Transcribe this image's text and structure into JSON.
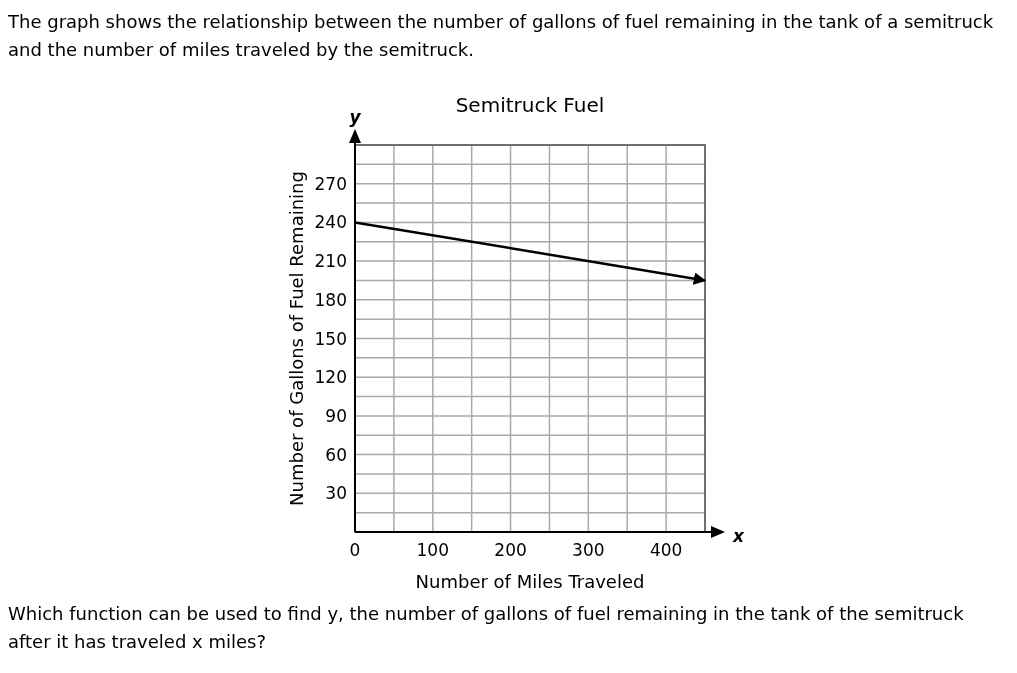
{
  "chart_data": {
    "type": "line",
    "title": "Semitruck Fuel",
    "xlabel": "Number of Miles Traveled",
    "ylabel": "Number of Gallons of Fuel Remaining",
    "annotations": [
      "The graph shows the relationship between the number of gallons of fuel remaining in the tank of a semitruck and the number of miles traveled by the semitruck.",
      "Which function can be used to find y, the number of gallons of fuel remaining in the tank of the semitruck after it has traveled x miles?",
      "x",
      "y"
    ],
    "x": [
      0,
      450
    ],
    "series": [
      {
        "color": "#000000",
        "values": [
          240,
          195
        ]
      }
    ],
    "xlim": [
      0,
      450
    ],
    "ylim": [
      0,
      300
    ],
    "xticks": [
      0,
      {
        "value": 50,
        "label": null
      },
      100,
      {
        "value": 150,
        "label": null
      },
      200,
      {
        "value": 250,
        "label": null
      },
      300,
      {
        "value": 350,
        "label": null
      },
      400,
      {
        "value": 450,
        "label": null
      }
    ],
    "yticks": [
      {
        "value": 15,
        "label": null
      },
      30,
      {
        "value": 45,
        "label": null
      },
      60,
      {
        "value": 75,
        "label": null
      },
      90,
      {
        "value": 105,
        "label": null
      },
      120,
      {
        "value": 135,
        "label": null
      },
      150,
      {
        "value": 165,
        "label": null
      },
      180,
      {
        "value": 195,
        "label": null
      },
      210,
      {
        "value": 225,
        "label": null
      },
      240,
      {
        "value": 255,
        "label": null
      },
      270,
      {
        "value": 285,
        "label": null
      },
      {
        "value": 300,
        "label": null
      }
    ],
    "grid": true,
    "marker": "none",
    "line_style": "solid"
  }
}
